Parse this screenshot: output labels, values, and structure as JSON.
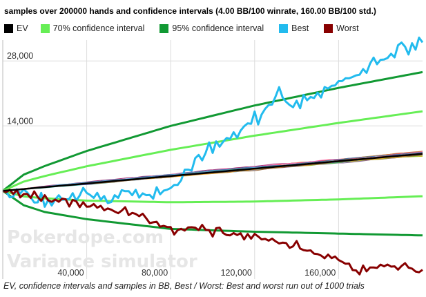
{
  "title": "samples over 200000 hands and confidence intervals (4.00 BB/100 winrate, 160.00 BB/100 std.)",
  "caption": "EV, confidence intervals and samples in BB, Best / Worst: Best and worst run out of 1000 trials",
  "watermark": {
    "line1": "Pokerdope.com",
    "line2": "Variance simulator"
  },
  "legend": [
    {
      "label": "EV",
      "color": "#000000"
    },
    {
      "label": "70% confidence interval",
      "color": "#66ee55"
    },
    {
      "label": "95% confidence interval",
      "color": "#119933"
    },
    {
      "label": "Best",
      "color": "#22bbee"
    },
    {
      "label": "Worst",
      "color": "#880000"
    }
  ],
  "chart_data": {
    "type": "line",
    "title": "samples over 200000 hands and confidence intervals (4.00 BB/100 winrate, 160.00 BB/100 std.)",
    "xlabel": "",
    "ylabel": "",
    "xlim": [
      0,
      200000
    ],
    "ylim": [
      -19000,
      32500
    ],
    "x_ticks": [
      40000,
      80000,
      120000,
      160000
    ],
    "x_tick_labels": [
      "40,000",
      "80,000",
      "120,000",
      "160,000"
    ],
    "y_ticks": [
      14000,
      28000
    ],
    "y_tick_labels": [
      "14,000",
      "28,000"
    ],
    "grid": true,
    "legend_position": "top",
    "series": [
      {
        "name": "EV",
        "color": "#000000",
        "x": [
          0,
          40000,
          80000,
          120000,
          160000,
          200000
        ],
        "values": [
          0,
          1600,
          3200,
          4800,
          6400,
          8000
        ]
      },
      {
        "name": "70% confidence interval",
        "color": "#66ee55",
        "x": [
          0,
          10000,
          20000,
          40000,
          80000,
          120000,
          160000,
          200000
        ],
        "values": [
          0,
          2000,
          3200,
          5300,
          8850,
          11900,
          14640,
          17150
        ]
      },
      {
        "name": "70% confidence interval",
        "color": "#66ee55",
        "x": [
          0,
          10000,
          20000,
          40000,
          80000,
          120000,
          160000,
          200000
        ],
        "values": [
          0,
          -1200,
          -1600,
          -2100,
          -2450,
          -2300,
          -1840,
          -1150
        ]
      },
      {
        "name": "95% confidence interval",
        "color": "#119933",
        "x": [
          0,
          10000,
          20000,
          40000,
          80000,
          120000,
          160000,
          200000
        ],
        "values": [
          0,
          3500,
          5350,
          8600,
          14000,
          18400,
          22200,
          25600
        ]
      },
      {
        "name": "95% confidence interval",
        "color": "#119933",
        "x": [
          0,
          10000,
          20000,
          40000,
          80000,
          120000,
          160000,
          200000
        ],
        "values": [
          0,
          -3100,
          -4550,
          -6100,
          -8200,
          -8800,
          -9200,
          -9600
        ]
      },
      {
        "name": "Best",
        "color": "#22bbee",
        "x": [
          0,
          10000,
          20000,
          30000,
          40000,
          50000,
          60000,
          70000,
          80000,
          90000,
          100000,
          110000,
          120000,
          130000,
          140000,
          150000,
          160000,
          170000,
          180000,
          190000,
          200000
        ],
        "values": [
          0,
          -500,
          -1500,
          -2500,
          1000,
          -2000,
          500,
          -1500,
          500,
          6000,
          9500,
          12000,
          16000,
          20000,
          19000,
          21500,
          24000,
          25500,
          28000,
          31000,
          32000
        ]
      },
      {
        "name": "Worst",
        "color": "#880000",
        "x": [
          0,
          10000,
          20000,
          30000,
          40000,
          50000,
          60000,
          70000,
          80000,
          90000,
          100000,
          110000,
          120000,
          130000,
          140000,
          150000,
          160000,
          170000,
          180000,
          190000,
          200000
        ],
        "values": [
          0,
          -1000,
          -2000,
          -2500,
          -3000,
          -4000,
          -4500,
          -6500,
          -8500,
          -8000,
          -8500,
          -9500,
          -10000,
          -11000,
          -12000,
          -13500,
          -15000,
          -17500,
          -15500,
          -16500,
          -17000
        ]
      }
    ]
  }
}
